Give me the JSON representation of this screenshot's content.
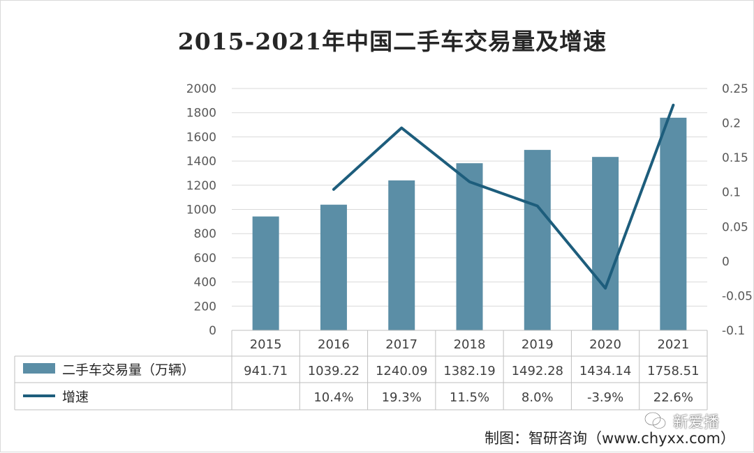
{
  "chart_data": {
    "type": "bar+line",
    "title": "2015-2021年中国二手车交易量及增速",
    "categories": [
      "2015",
      "2016",
      "2017",
      "2018",
      "2019",
      "2020",
      "2021"
    ],
    "series": [
      {
        "name": "二手车交易量（万辆）",
        "type": "bar",
        "axis": "left",
        "values": [
          941.71,
          1039.22,
          1240.09,
          1382.19,
          1492.28,
          1434.14,
          1758.51
        ],
        "labels": [
          "941.71",
          "1039.22",
          "1240.09",
          "1382.19",
          "1492.28",
          "1434.14",
          "1758.51"
        ],
        "color": "#5b8ea6"
      },
      {
        "name": "增速",
        "type": "line",
        "axis": "right",
        "values": [
          null,
          0.104,
          0.193,
          0.115,
          0.08,
          -0.039,
          0.226
        ],
        "labels": [
          "",
          "10.4%",
          "19.3%",
          "11.5%",
          "8.0%",
          "-3.9%",
          "22.6%"
        ],
        "color": "#1d5d7c"
      }
    ],
    "left_axis": {
      "ylim": [
        0,
        2000
      ],
      "ticks": [
        "0",
        "200",
        "400",
        "600",
        "800",
        "1000",
        "1200",
        "1400",
        "1600",
        "1800",
        "2000"
      ]
    },
    "right_axis": {
      "ylim": [
        -0.1,
        0.25
      ],
      "ticks": [
        "-0.1",
        "-0.05",
        "0",
        "0.05",
        "0.1",
        "0.15",
        "0.2",
        "0.25"
      ]
    },
    "grid": true,
    "legend": "data-table"
  },
  "credit": "制图：智研咨询（www.chyxx.com）",
  "watermark": {
    "text": "新爱播",
    "icon": "wechat-icon"
  }
}
